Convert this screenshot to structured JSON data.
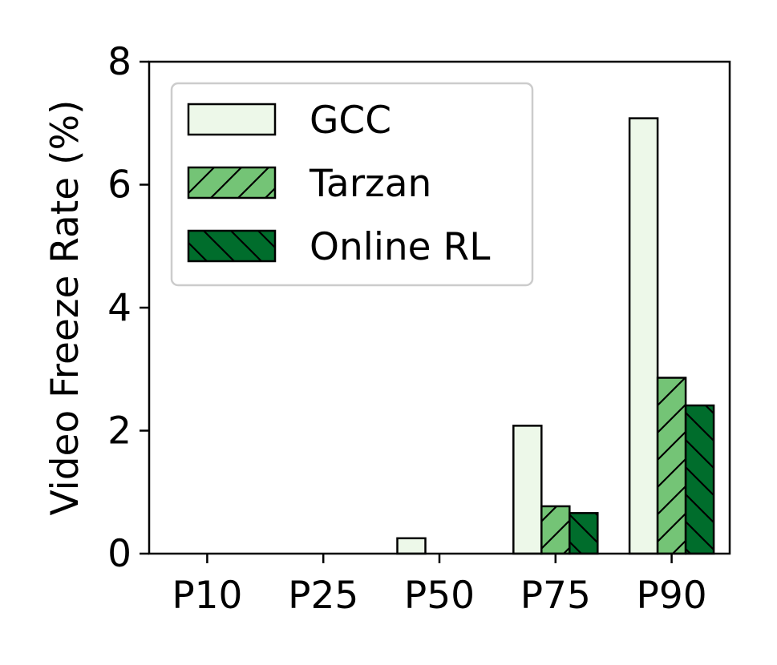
{
  "chart_data": {
    "type": "bar",
    "title": "",
    "xlabel": "",
    "ylabel": "Video Freeze Rate (%)",
    "categories": [
      "P10",
      "P25",
      "P50",
      "P75",
      "P90"
    ],
    "ylim": [
      0,
      8
    ],
    "yticks": [
      "0",
      "2",
      "4",
      "6",
      "8"
    ],
    "grid": false,
    "legend_position": "top-left",
    "series": [
      {
        "name": "GCC",
        "values": [
          0,
          0,
          0.25,
          2.08,
          7.08
        ],
        "color": "#edf8e9",
        "hatch": "none"
      },
      {
        "name": "Tarzan",
        "values": [
          0,
          0,
          0,
          0.77,
          2.86
        ],
        "color": "#74c476",
        "hatch": "forward"
      },
      {
        "name": "Online RL",
        "values": [
          0,
          0,
          0,
          0.66,
          2.41
        ],
        "color": "#006d2c",
        "hatch": "back"
      }
    ]
  }
}
